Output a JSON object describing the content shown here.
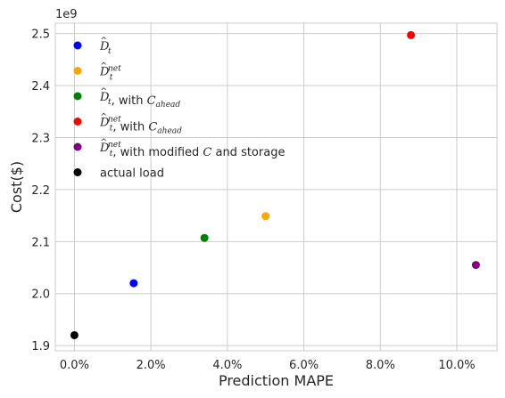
{
  "chart_data": {
    "type": "scatter",
    "title": "",
    "xlabel": "Prediction MAPE",
    "ylabel": "Cost($)",
    "y_offset_label": "1e9",
    "xlim": [
      -0.005,
      0.1105
    ],
    "ylim": [
      1.89,
      2.52
    ],
    "x_ticks": [
      0.0,
      0.02,
      0.04,
      0.06,
      0.08,
      0.1
    ],
    "x_tick_labels": [
      "0.0%",
      "2.0%",
      "4.0%",
      "6.0%",
      "8.0%",
      "10.0%"
    ],
    "y_ticks": [
      1.9,
      2.0,
      2.1,
      2.2,
      2.3,
      2.4,
      2.5
    ],
    "y_tick_labels": [
      "1.9",
      "2.0",
      "2.1",
      "2.2",
      "2.3",
      "2.4",
      "2.5"
    ],
    "grid": true,
    "legend_position": "upper-left",
    "series": [
      {
        "legend": {
          "base": "D",
          "hat": "^",
          "sub": "t",
          "sup": "",
          "suffix_text": "",
          "suffix_cal": "",
          "suffix_cal_sub": "",
          "suffix_tail": ""
        },
        "color": "#0000ff",
        "x": 0.0155,
        "y": 2.02
      },
      {
        "legend": {
          "base": "D",
          "hat": "^",
          "sub": "t",
          "sup": "net",
          "suffix_text": "",
          "suffix_cal": "",
          "suffix_cal_sub": "",
          "suffix_tail": ""
        },
        "color": "#ffa500",
        "x": 0.05,
        "y": 2.149
      },
      {
        "legend": {
          "base": "D",
          "hat": "^",
          "sub": "t",
          "sup": "",
          "suffix_text": ", with ",
          "suffix_cal": "C",
          "suffix_cal_sub": "ahead",
          "suffix_tail": ""
        },
        "color": "#008000",
        "x": 0.034,
        "y": 2.107
      },
      {
        "legend": {
          "base": "D",
          "hat": "^",
          "sub": "t",
          "sup": "net",
          "suffix_text": ", with ",
          "suffix_cal": "C",
          "suffix_cal_sub": "ahead",
          "suffix_tail": ""
        },
        "color": "#ff0000",
        "x": 0.088,
        "y": 2.497
      },
      {
        "legend": {
          "base": "D",
          "hat": "^",
          "sub": "t",
          "sup": "net",
          "suffix_text": ", with modified ",
          "suffix_cal": "C",
          "suffix_cal_sub": "",
          "suffix_tail": " and storage"
        },
        "color": "#800080",
        "x": 0.105,
        "y": 2.055
      },
      {
        "legend": {
          "base": "",
          "hat": "",
          "sub": "",
          "sup": "",
          "suffix_text": "actual load",
          "suffix_cal": "",
          "suffix_cal_sub": "",
          "suffix_tail": ""
        },
        "color": "#000000",
        "x": 0.0,
        "y": 1.92
      }
    ]
  }
}
